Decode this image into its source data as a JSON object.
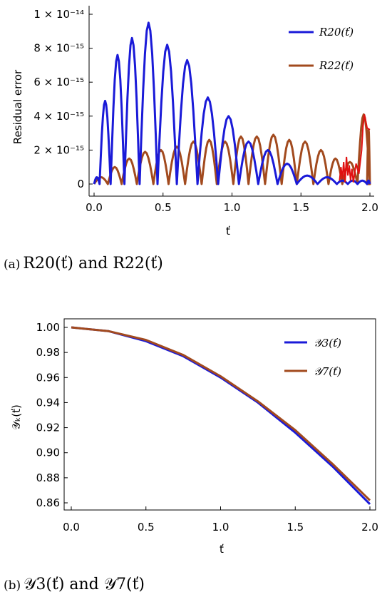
{
  "colors": {
    "blue": "#1a1ad8",
    "brown": "#a24a1e",
    "red": "#e01010",
    "axis": "#000000"
  },
  "chart_data": [
    {
      "type": "line",
      "xlabel": "ť",
      "ylabel": "Residual error",
      "xlim": [
        0,
        2.0
      ],
      "ylim": [
        0,
        1e-14
      ],
      "x_ticks": [
        "0.0",
        "0.5",
        "1.0",
        "1.5",
        "2.0"
      ],
      "y_ticks": [
        "0",
        "2 × 10⁻¹⁵",
        "4 × 10⁻¹⁵",
        "6 × 10⁻¹⁵",
        "8 × 10⁻¹⁵",
        "1 × 10⁻¹⁴"
      ],
      "legend_position": "top-right",
      "series": [
        {
          "name": "R20(ť)",
          "color_key": "blue",
          "peaks": [
            [
              0.02,
              4e-16
            ],
            [
              0.08,
              4.9e-15
            ],
            [
              0.17,
              7.6e-15
            ],
            [
              0.27,
              8.6e-15
            ],
            [
              0.39,
              9.5e-15
            ],
            [
              0.53,
              8.2e-15
            ],
            [
              0.68,
              7.3e-15
            ],
            [
              0.83,
              5.1e-15
            ],
            [
              0.98,
              4e-15
            ],
            [
              1.12,
              2.5e-15
            ],
            [
              1.26,
              2e-15
            ],
            [
              1.4,
              1.2e-15
            ],
            [
              1.55,
              5e-16
            ],
            [
              1.7,
              4e-16
            ],
            [
              1.8,
              2e-16
            ],
            [
              1.87,
              2e-16
            ],
            [
              1.95,
              2e-16
            ],
            [
              2.0,
              2e-16
            ]
          ],
          "zeros": [
            0.0,
            0.04,
            0.12,
            0.22,
            0.33,
            0.46,
            0.6,
            0.75,
            0.9,
            1.05,
            1.19,
            1.33,
            1.47,
            1.62,
            1.76,
            1.84,
            1.91,
            1.98
          ]
        },
        {
          "name": "R22(ť)",
          "color_key": "brown",
          "peaks": [
            [
              0.05,
              4e-16
            ],
            [
              0.15,
              1e-15
            ],
            [
              0.26,
              1.5e-15
            ],
            [
              0.37,
              1.9e-15
            ],
            [
              0.49,
              2e-15
            ],
            [
              0.6,
              2.2e-15
            ],
            [
              0.72,
              2.5e-15
            ],
            [
              0.84,
              2.6e-15
            ],
            [
              0.95,
              2.5e-15
            ],
            [
              1.07,
              2.8e-15
            ],
            [
              1.18,
              2.8e-15
            ],
            [
              1.3,
              2.9e-15
            ],
            [
              1.41,
              2.6e-15
            ],
            [
              1.53,
              2.5e-15
            ],
            [
              1.64,
              2e-15
            ],
            [
              1.75,
              1.5e-15
            ],
            [
              1.84,
              1.3e-15
            ],
            [
              1.96,
              4.1e-15
            ],
            [
              2.0,
              3.2e-15
            ]
          ],
          "zeros": [
            0.0,
            0.1,
            0.2,
            0.31,
            0.43,
            0.54,
            0.66,
            0.78,
            0.89,
            1.01,
            1.12,
            1.24,
            1.36,
            1.47,
            1.59,
            1.7,
            1.8,
            1.91
          ]
        }
      ],
      "caption_label": "(a)",
      "caption_text": "R20(ť) and R22(ť)"
    },
    {
      "type": "line",
      "xlabel": "ť",
      "ylabel": "𝒴ₖ(ť)",
      "xlim": [
        0,
        2.0
      ],
      "ylim": [
        0.855,
        1.005
      ],
      "x_ticks": [
        "0.0",
        "0.5",
        "1.0",
        "1.5",
        "2.0"
      ],
      "y_ticks": [
        "0.86",
        "0.88",
        "0.90",
        "0.92",
        "0.94",
        "0.96",
        "0.98",
        "1.00"
      ],
      "legend_position": "top-right",
      "series": [
        {
          "name": "𝒴3(ť)",
          "color_key": "blue",
          "x": [
            0.0,
            0.25,
            0.5,
            0.75,
            1.0,
            1.25,
            1.5,
            1.75,
            2.0
          ],
          "y": [
            1.0,
            0.997,
            0.989,
            0.977,
            0.96,
            0.94,
            0.916,
            0.889,
            0.859
          ]
        },
        {
          "name": "𝒴7(ť)",
          "color_key": "brown",
          "x": [
            0.0,
            0.25,
            0.5,
            0.75,
            1.0,
            1.25,
            1.5,
            1.75,
            2.0
          ],
          "y": [
            1.0,
            0.997,
            0.99,
            0.978,
            0.961,
            0.941,
            0.918,
            0.891,
            0.862
          ]
        }
      ],
      "caption_label": "(b)",
      "caption_text": "𝒴3(ť) and 𝒴7(ť)"
    }
  ]
}
